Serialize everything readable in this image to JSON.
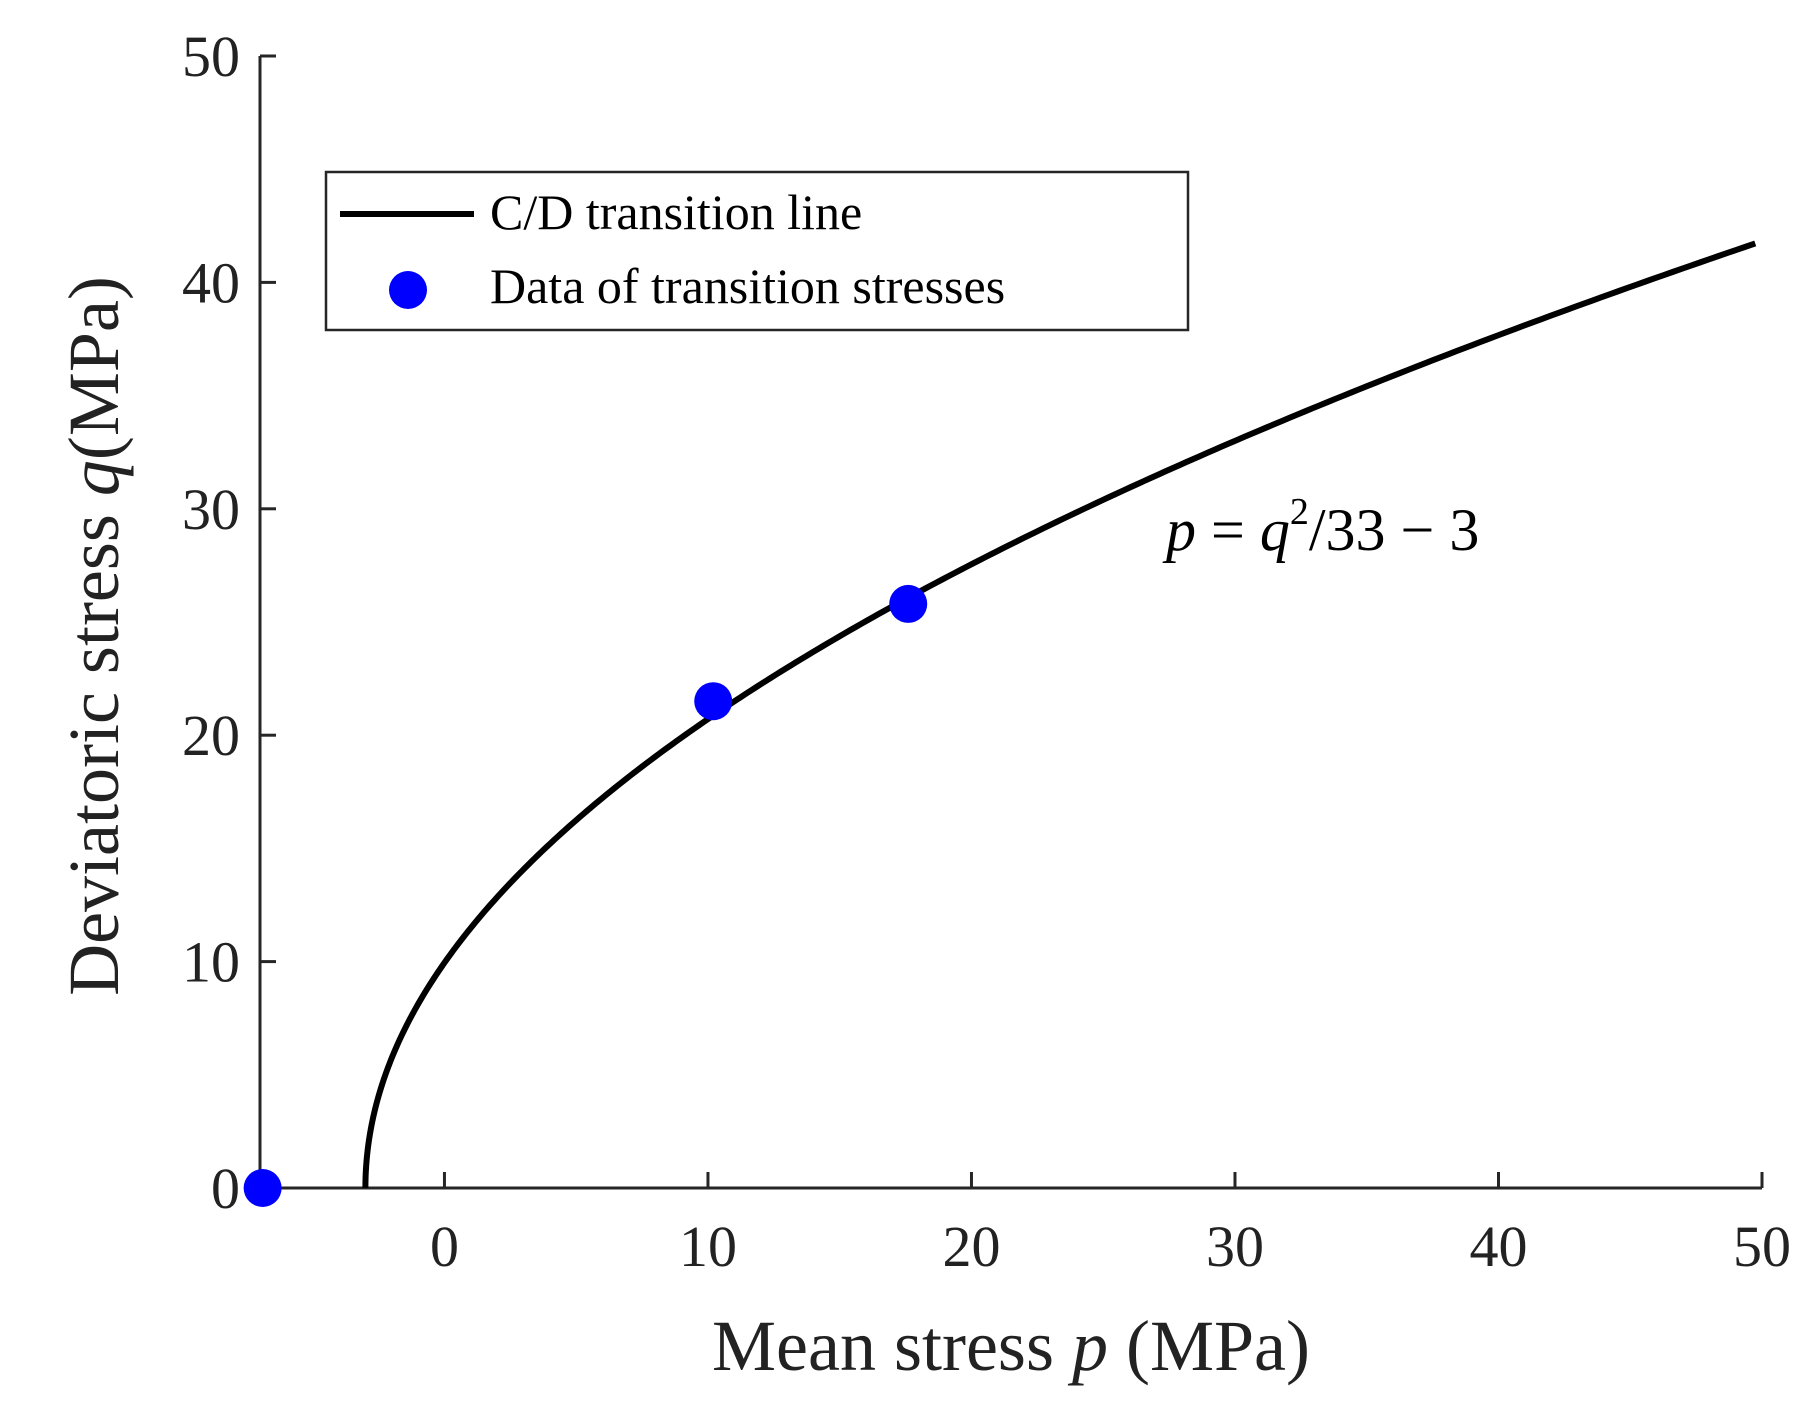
{
  "chart_data": {
    "type": "line",
    "title": "",
    "xlabel": "Mean stress",
    "xlabel_var": "p",
    "xlabel_unit": "(MPa)",
    "ylabel": "Deviatoric stress",
    "ylabel_var": "q",
    "ylabel_unit": "(MPa)",
    "xlim": [
      -7,
      50
    ],
    "ylim": [
      0,
      50
    ],
    "xticks": [
      0,
      10,
      20,
      30,
      40,
      50
    ],
    "yticks": [
      0,
      10,
      20,
      30,
      40,
      50
    ],
    "grid": false,
    "legend_position": "top-left",
    "series": [
      {
        "name": "C/D transition line",
        "style": "line",
        "color": "#000000",
        "equation": "p = q^2/33 - 3",
        "q_range": [
          0,
          42
        ]
      },
      {
        "name": "Data of transition stresses",
        "style": "scatter",
        "color": "#0000ff",
        "points": [
          {
            "x": -6.9,
            "y": 0
          },
          {
            "x": 10.2,
            "y": 21.5
          },
          {
            "x": 17.6,
            "y": 25.8
          }
        ]
      }
    ],
    "annotation": {
      "p": "p",
      "eq": " = ",
      "q": "q",
      "sup": "2",
      "rest": "/33 − 3"
    }
  }
}
